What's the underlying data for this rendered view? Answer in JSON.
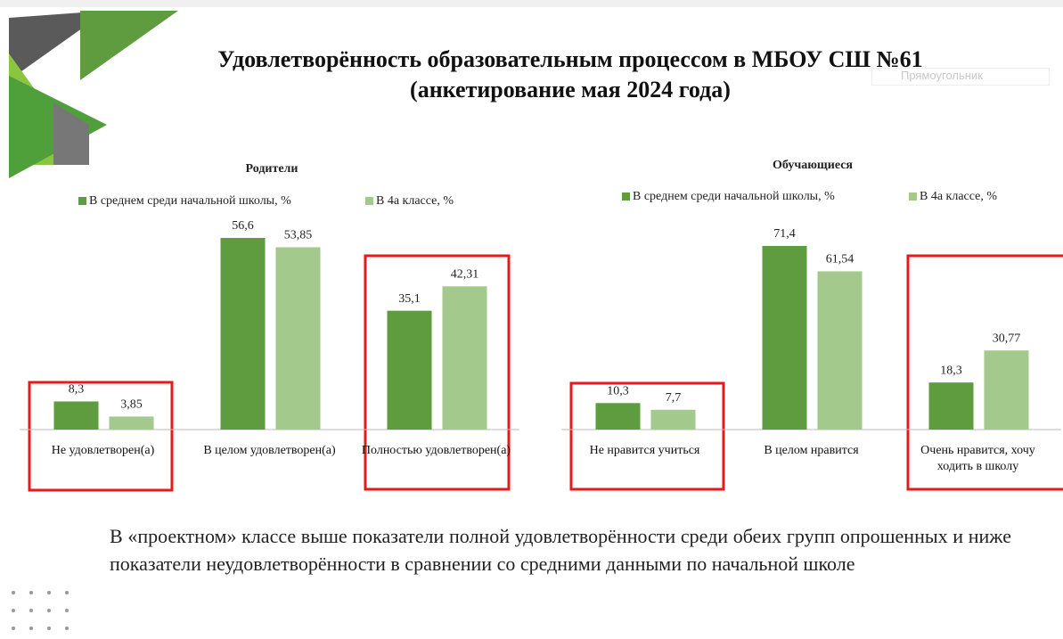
{
  "title_lines": [
    "Удовлетворённость образовательным процессом в МБОУ СШ №61",
    "(анкетирование мая 2024 года)"
  ],
  "overlay_label": "Прямоугольник",
  "chart_data": [
    {
      "type": "bar",
      "title": "Родители",
      "categories": [
        "Не удовлетворен(а)",
        "В целом удовлетворен(а)",
        "Полностью удовлетворен(а)"
      ],
      "series": [
        {
          "name": "В среднем среди начальной школы, %",
          "color": "#5f9b3f",
          "values": [
            8.3,
            56.6,
            35.1
          ],
          "value_labels": [
            "8,3",
            "56,6",
            "35,1"
          ]
        },
        {
          "name": "В 4а классе, %",
          "color": "#a4c98c",
          "values": [
            3.85,
            53.85,
            42.31
          ],
          "value_labels": [
            "3,85",
            "53,85",
            "42,31"
          ]
        }
      ]
    },
    {
      "type": "bar",
      "title": "Обучающиеся",
      "categories": [
        "Не нравится учиться",
        "В целом нравится",
        "Очень нравится, хочу ходить в школу"
      ],
      "series": [
        {
          "name": "В среднем среди начальной школы, %",
          "color": "#5f9b3f",
          "values": [
            10.3,
            71.4,
            18.3
          ],
          "value_labels": [
            "10,3",
            "71,4",
            "18,3"
          ]
        },
        {
          "name": "В 4а классе, %",
          "color": "#a4c98c",
          "values": [
            7.7,
            61.54,
            30.77
          ],
          "value_labels": [
            "7,7",
            "61,54",
            "30,77"
          ]
        }
      ]
    }
  ],
  "conclusion": "В «проектном» классе выше показатели полной удовлетворённости среди обеих групп опрошенных и ниже показатели неудовлетворённости в сравнении со средними данными по начальной школе"
}
